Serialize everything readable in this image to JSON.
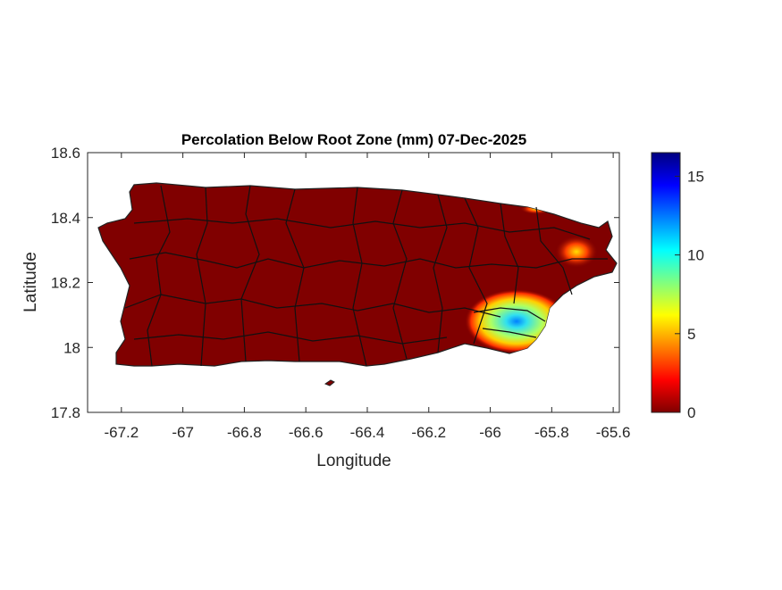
{
  "chart_data": {
    "type": "heatmap",
    "title": "Percolation Below Root Zone (mm) 07-Dec-2025",
    "xlabel": "Longitude",
    "ylabel": "Latitude",
    "xlim": [
      -67.31,
      -65.58
    ],
    "ylim": [
      17.8,
      18.6
    ],
    "xticks": [
      -67.2,
      -67,
      -66.8,
      -66.6,
      -66.4,
      -66.2,
      -66,
      -65.8,
      -65.6
    ],
    "xtick_labels": [
      "-67.2",
      "-67",
      "-66.8",
      "-66.6",
      "-66.4",
      "-66.2",
      "-66",
      "-65.8",
      "-65.6"
    ],
    "yticks": [
      17.8,
      18,
      18.2,
      18.4,
      18.6
    ],
    "ytick_labels": [
      "17.8",
      "18",
      "18.2",
      "18.4",
      "18.6"
    ],
    "colorbar": {
      "colormap": "jet",
      "limits": [
        0,
        16.5
      ],
      "ticks": [
        0,
        5,
        10,
        15
      ],
      "tick_labels": [
        "0",
        "5",
        "10",
        "15"
      ]
    },
    "background_value": 0,
    "hotspots": [
      {
        "lon": -65.93,
        "lat": 18.09,
        "peak": 14
      },
      {
        "lon": -65.73,
        "lat": 18.29,
        "peak": 6
      },
      {
        "lon": -65.78,
        "lat": 18.38,
        "peak": 8
      }
    ],
    "grid": false
  }
}
